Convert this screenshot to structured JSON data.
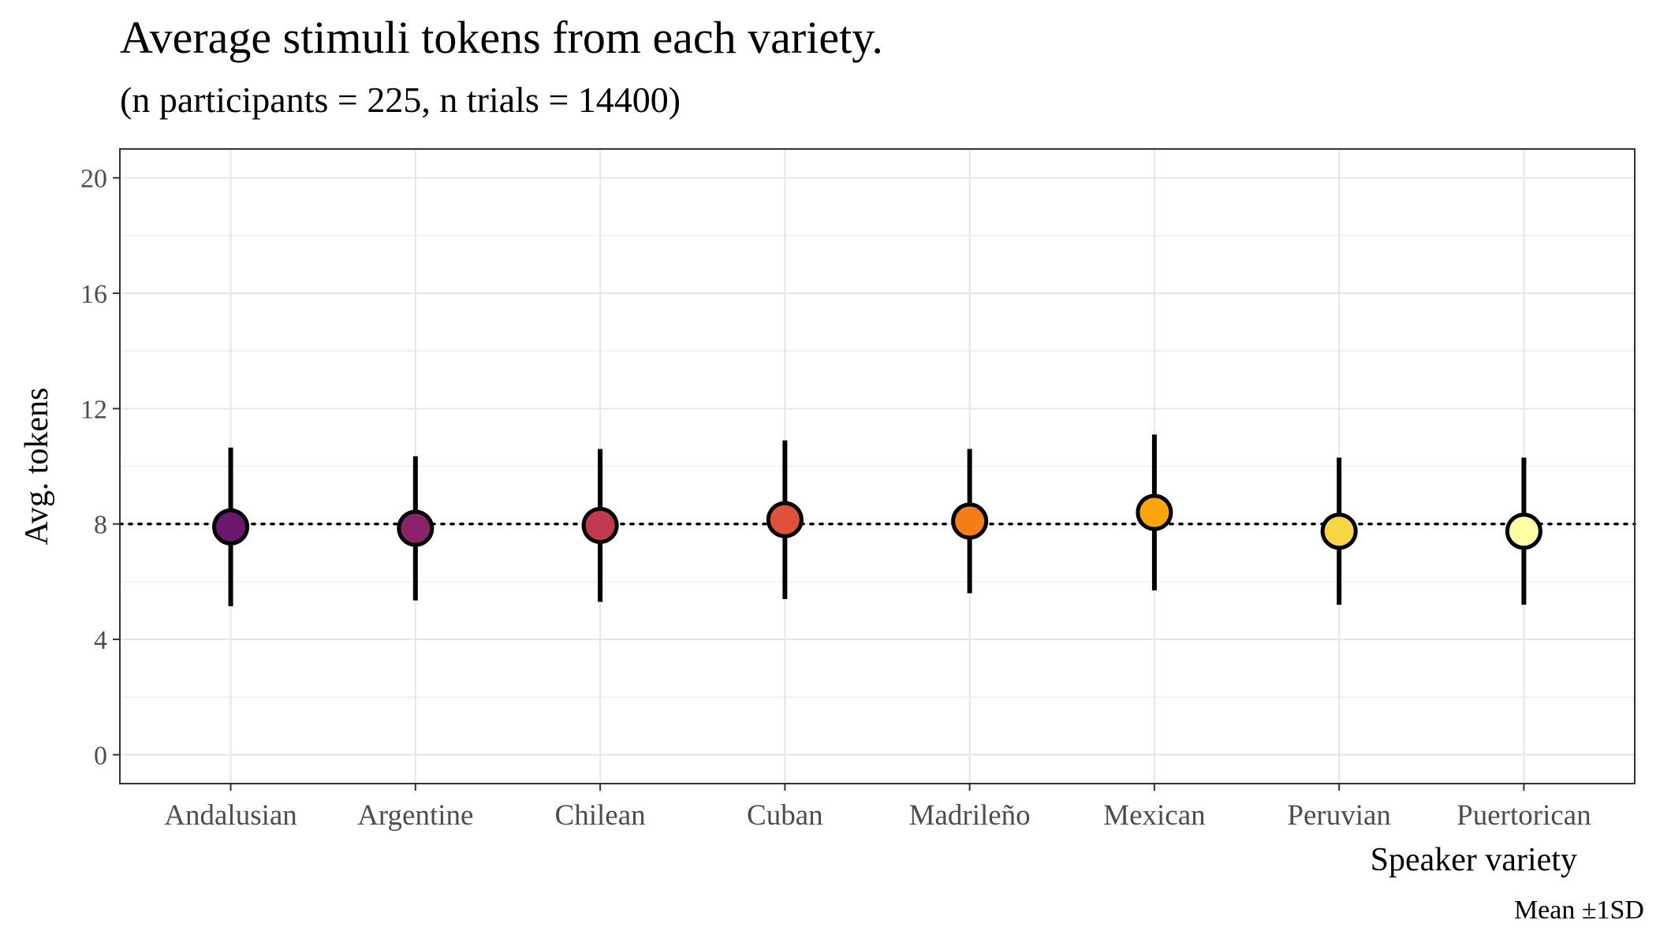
{
  "chart_data": {
    "type": "scatter",
    "title": "Average stimuli tokens from each variety.",
    "subtitle": "(n participants = 225, n trials = 14400)",
    "caption": "Mean ±1SD",
    "xlabel": "Speaker variety",
    "ylabel": "Avg. tokens",
    "ylim": [
      -1,
      21
    ],
    "yticks": [
      0,
      4,
      8,
      12,
      16,
      20
    ],
    "grid": true,
    "reference_line": 8,
    "categories": [
      "Andalusian",
      "Argentine",
      "Chilean",
      "Cuban",
      "Madrileño",
      "Mexican",
      "Peruvian",
      "Puertorican"
    ],
    "series": [
      {
        "values": [
          7.9,
          7.85,
          7.95,
          8.15,
          8.1,
          8.4,
          7.75,
          7.75
        ],
        "sd": [
          2.75,
          2.5,
          2.65,
          2.75,
          2.5,
          2.7,
          2.55,
          2.55
        ],
        "colors": [
          "#6a176e",
          "#8c2369",
          "#c13a50",
          "#e0513a",
          "#f57d15",
          "#fca50a",
          "#f6d645",
          "#fcffa4"
        ]
      }
    ]
  }
}
